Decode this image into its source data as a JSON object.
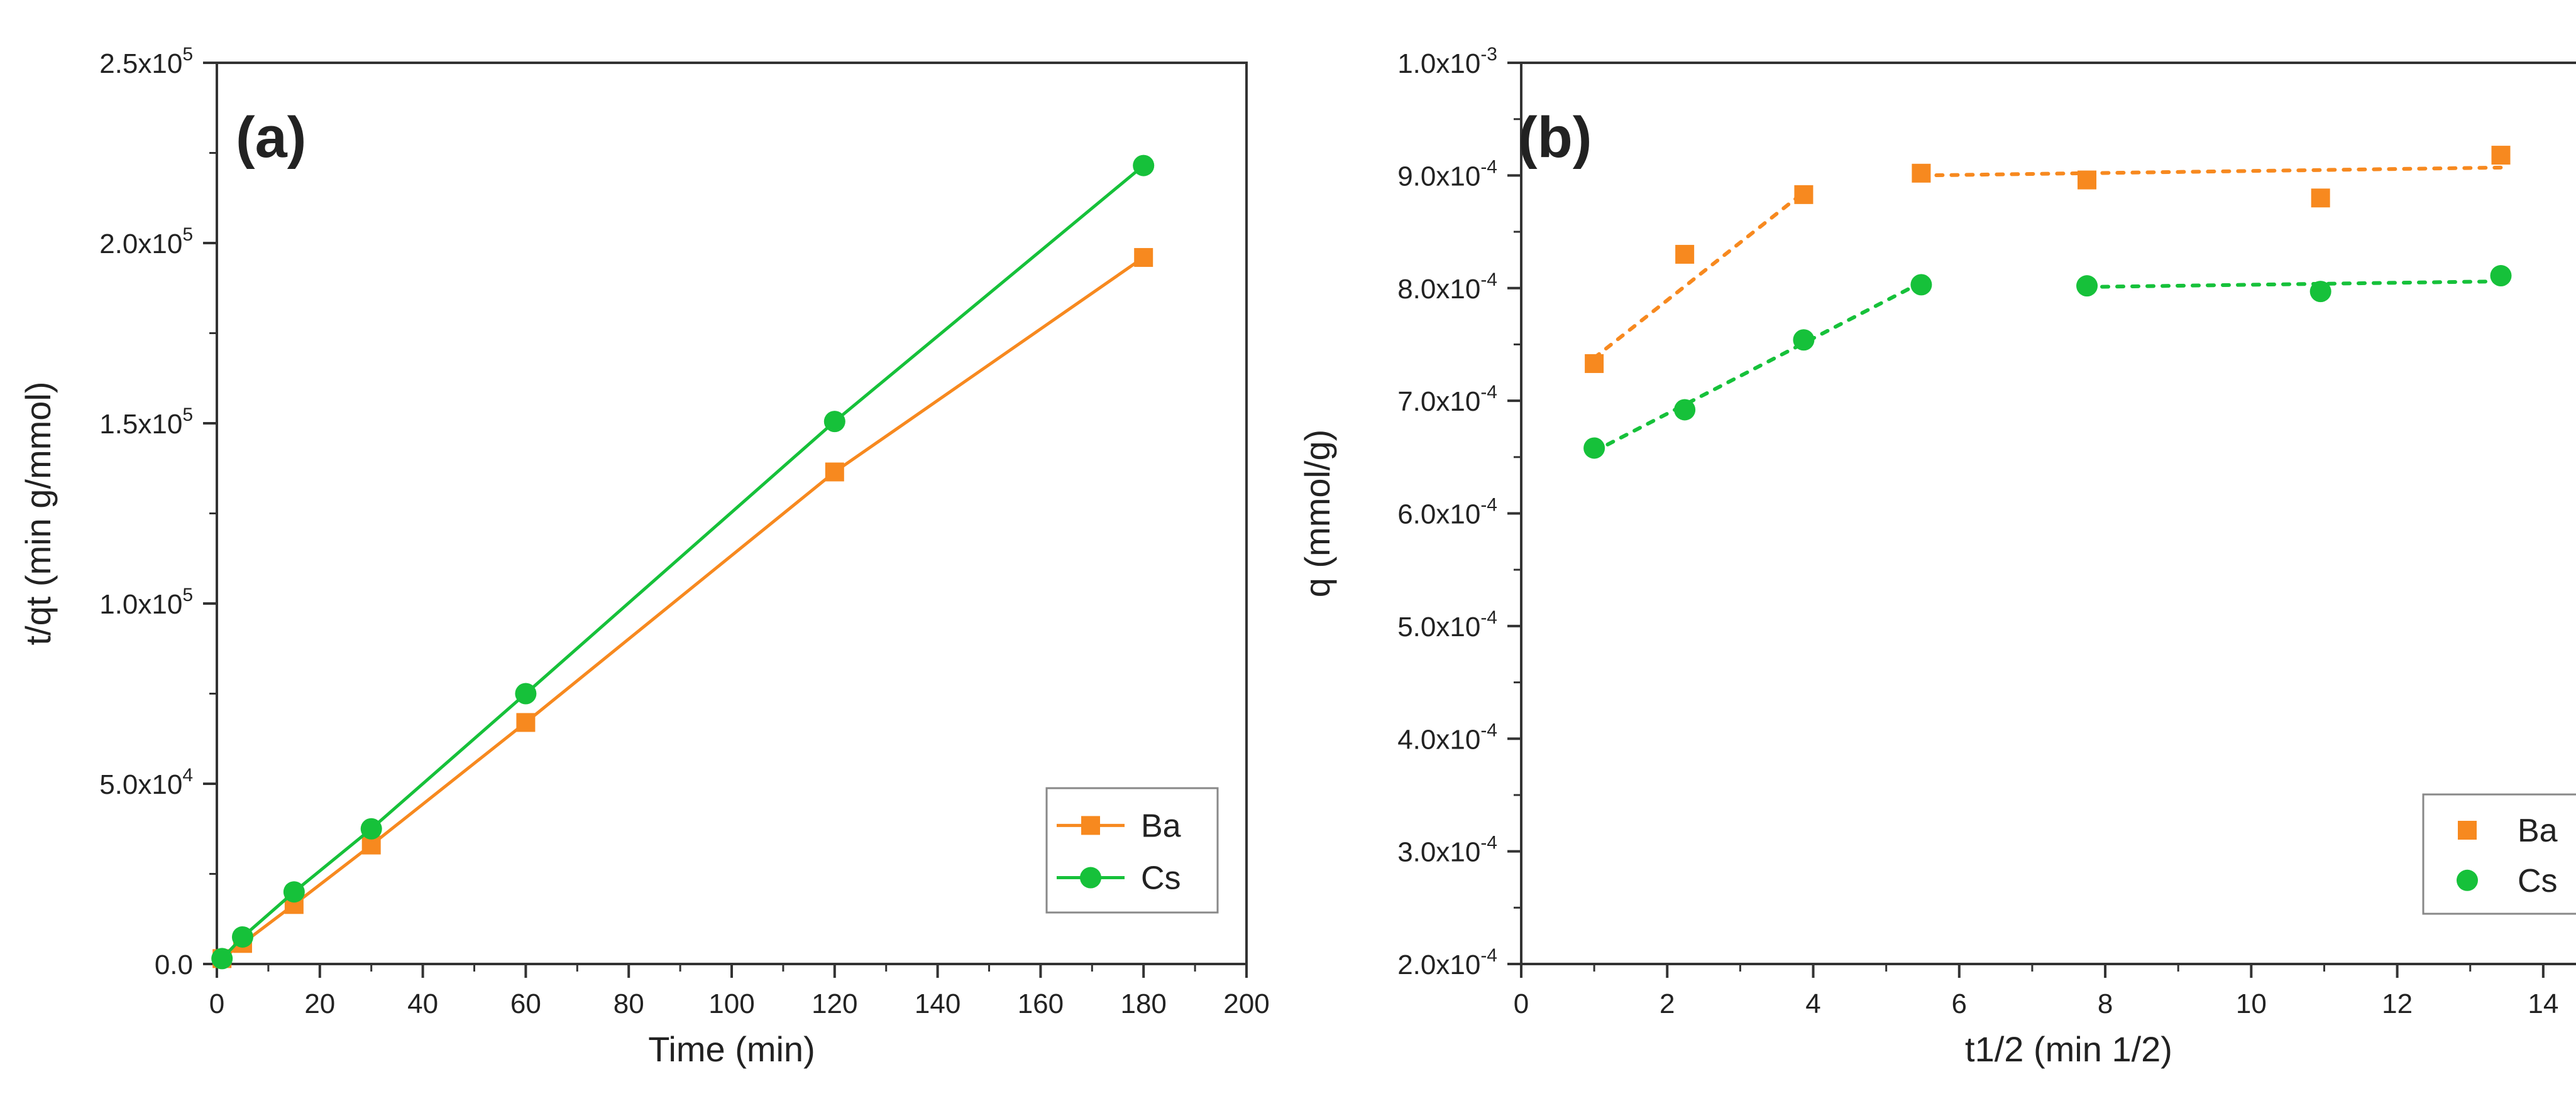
{
  "colors": {
    "ba": "#f7891f",
    "cs": "#16c13a",
    "axis": "#333333",
    "legend_border": "#888888"
  },
  "chart_data": [
    {
      "id": "a",
      "type": "line",
      "panel_label": "(a)",
      "title": "",
      "xlabel": "Time (min)",
      "ylabel": "t/qt (min g/mmol)",
      "xlim": [
        0,
        200
      ],
      "ylim": [
        0,
        250000
      ],
      "x_ticks": [
        0,
        20,
        40,
        60,
        80,
        100,
        120,
        140,
        160,
        180,
        200
      ],
      "x_tick_labels": [
        "0",
        "20",
        "40",
        "60",
        "80",
        "100",
        "120",
        "140",
        "160",
        "180",
        "200"
      ],
      "y_ticks": [
        0,
        50000,
        100000,
        150000,
        200000,
        250000
      ],
      "y_tick_labels": [
        {
          "base": "0.0",
          "exp": ""
        },
        {
          "base": "5.0x10",
          "exp": "4"
        },
        {
          "base": "1.0x10",
          "exp": "5"
        },
        {
          "base": "1.5x10",
          "exp": "5"
        },
        {
          "base": "2.0x10",
          "exp": "5"
        },
        {
          "base": "2.5x10",
          "exp": "5"
        }
      ],
      "legend_position": "bottom-right",
      "series": [
        {
          "name": "Ba",
          "marker": "square",
          "line": "solid",
          "x": [
            1,
            5,
            15,
            30,
            60,
            120,
            180
          ],
          "y": [
            1500,
            5700,
            16500,
            33000,
            67000,
            136500,
            196000
          ]
        },
        {
          "name": "Cs",
          "marker": "circle",
          "line": "solid",
          "x": [
            1,
            5,
            15,
            30,
            60,
            120,
            180
          ],
          "y": [
            1500,
            7500,
            20000,
            37500,
            75000,
            150500,
            221500
          ]
        }
      ]
    },
    {
      "id": "b",
      "type": "scatter",
      "panel_label": "(b)",
      "title": "",
      "xlabel": "t1/2 (min 1/2)",
      "ylabel": "q (mmol/g)",
      "xlim": [
        0,
        15
      ],
      "ylim": [
        0.0002,
        0.001
      ],
      "x_ticks": [
        0,
        2,
        4,
        6,
        8,
        10,
        12,
        14
      ],
      "x_tick_labels": [
        "0",
        "2",
        "4",
        "6",
        "8",
        "10",
        "12",
        "14"
      ],
      "y_ticks": [
        0.0002,
        0.0003,
        0.0004,
        0.0005,
        0.0006,
        0.0007,
        0.0008,
        0.0009,
        0.001
      ],
      "y_tick_labels": [
        {
          "base": "2.0x10",
          "exp": "-4"
        },
        {
          "base": "3.0x10",
          "exp": "-4"
        },
        {
          "base": "4.0x10",
          "exp": "-4"
        },
        {
          "base": "5.0x10",
          "exp": "-4"
        },
        {
          "base": "6.0x10",
          "exp": "-4"
        },
        {
          "base": "7.0x10",
          "exp": "-4"
        },
        {
          "base": "8.0x10",
          "exp": "-4"
        },
        {
          "base": "9.0x10",
          "exp": "-4"
        },
        {
          "base": "1.0x10",
          "exp": "-3"
        }
      ],
      "legend_position": "bottom-right",
      "series": [
        {
          "name": "Ba",
          "marker": "square",
          "x": [
            1.0,
            2.24,
            3.87,
            5.48,
            7.75,
            10.95,
            13.42
          ],
          "y": [
            0.000733,
            0.00083,
            0.000883,
            0.000902,
            0.000896,
            0.00088,
            0.000918
          ]
        },
        {
          "name": "Cs",
          "marker": "circle",
          "x": [
            1.0,
            2.24,
            3.87,
            5.48,
            7.75,
            10.95,
            13.42
          ],
          "y": [
            0.000658,
            0.000692,
            0.000754,
            0.000803,
            0.000802,
            0.000797,
            0.000811
          ]
        }
      ],
      "fit_lines": [
        {
          "series": "Ba",
          "style": "dotted",
          "x": [
            1.0,
            3.87
          ],
          "y": [
            0.000738,
            0.000885
          ]
        },
        {
          "series": "Ba",
          "style": "dotted",
          "x": [
            5.48,
            13.42
          ],
          "y": [
            0.0009,
            0.000907
          ]
        },
        {
          "series": "Cs",
          "style": "dotted",
          "x": [
            1.0,
            5.48
          ],
          "y": [
            0.000655,
            0.000805
          ]
        },
        {
          "series": "Cs",
          "style": "dotted",
          "x": [
            7.75,
            13.42
          ],
          "y": [
            0.000801,
            0.000806
          ]
        }
      ]
    }
  ]
}
